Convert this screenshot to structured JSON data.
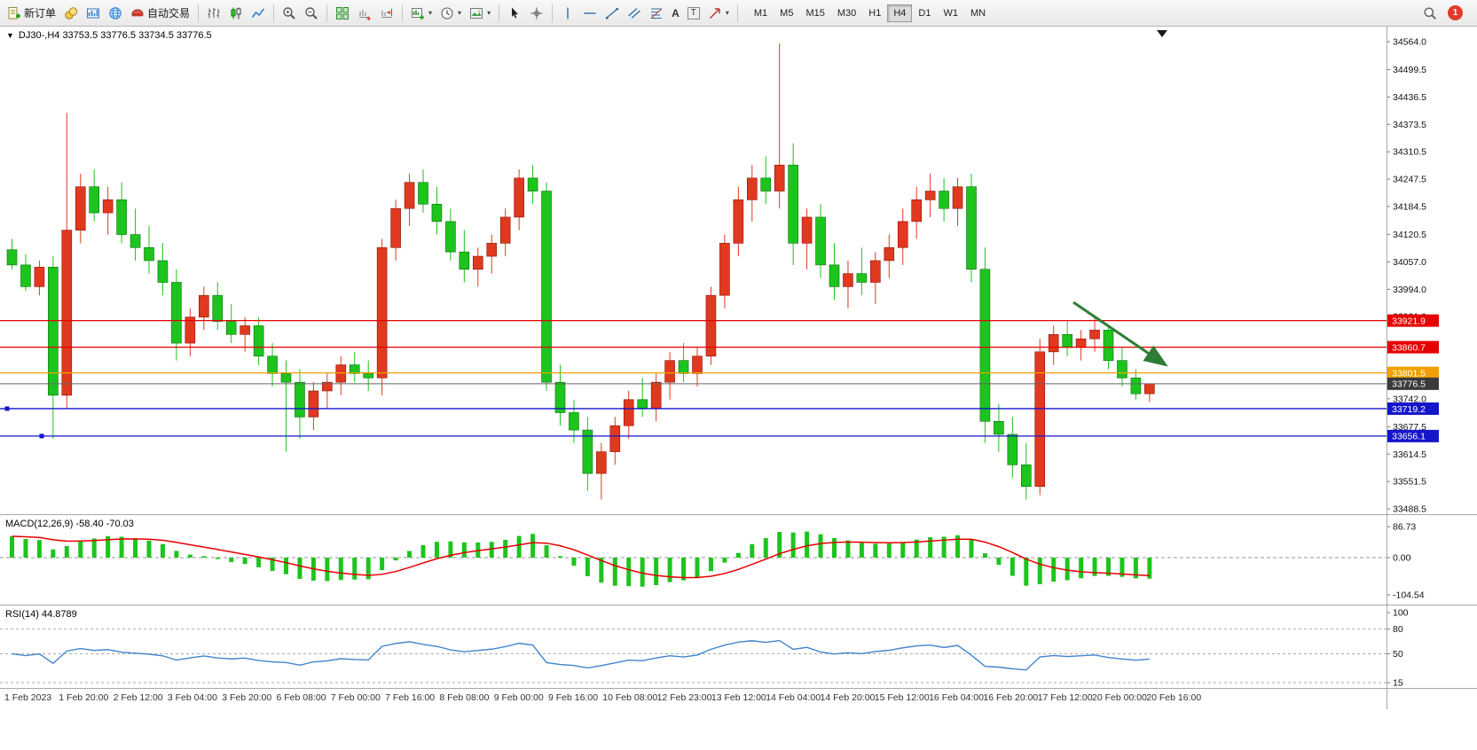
{
  "toolbar": {
    "new_order_label": "新订单",
    "auto_trading_label": "自动交易",
    "timeframes": [
      "M1",
      "M5",
      "M15",
      "M30",
      "H1",
      "H4",
      "D1",
      "W1",
      "MN"
    ],
    "active_timeframe": "H4",
    "notification_badge": "1",
    "icon_glyphs": {
      "collapse_triangle": "▼",
      "caret": "▾",
      "text_tool": "A",
      "label_tool": "T"
    },
    "icons": [
      "new-order",
      "market-watch",
      "toolbox",
      "mql5-community",
      "algo-trading",
      "bar-chart",
      "candlestick-chart",
      "line-chart",
      "zoom-in",
      "zoom-out",
      "tile-windows",
      "auto-scroll",
      "chart-shift",
      "new-chart",
      "periods-clock",
      "templates-image",
      "cursor",
      "crosshair",
      "vertical-line",
      "horizontal-line",
      "trend-line",
      "equidistant-channel",
      "fibonacci",
      "text",
      "text-label",
      "arrows",
      "search",
      "notifications"
    ]
  },
  "chart_data": [
    {
      "name": "main-price-chart",
      "type": "candlestick",
      "symbol": "DJ30-",
      "period": "H4",
      "title_text": "DJ30-,H4 33753.5 33776.5 33734.5 33776.5",
      "price_range": {
        "min": 33488.5,
        "max": 34564.0
      },
      "up_color": "#e0391f",
      "down_color": "#1dc41d",
      "candles": [
        [
          34085,
          34110,
          34040,
          34050
        ],
        [
          34050,
          34075,
          33990,
          34000
        ],
        [
          34000,
          34060,
          33980,
          34045
        ],
        [
          34045,
          34070,
          33650,
          33750
        ],
        [
          33750,
          34400,
          33720,
          34130
        ],
        [
          34130,
          34260,
          34100,
          34230
        ],
        [
          34230,
          34270,
          34150,
          34170
        ],
        [
          34170,
          34230,
          34120,
          34200
        ],
        [
          34200,
          34240,
          34100,
          34120
        ],
        [
          34120,
          34180,
          34060,
          34090
        ],
        [
          34090,
          34140,
          34030,
          34060
        ],
        [
          34060,
          34100,
          33980,
          34010
        ],
        [
          34010,
          34040,
          33830,
          33870
        ],
        [
          33870,
          33950,
          33840,
          33930
        ],
        [
          33930,
          34000,
          33900,
          33980
        ],
        [
          33980,
          34010,
          33900,
          33920
        ],
        [
          33920,
          33960,
          33870,
          33890
        ],
        [
          33890,
          33930,
          33850,
          33910
        ],
        [
          33910,
          33930,
          33820,
          33840
        ],
        [
          33840,
          33870,
          33770,
          33800
        ],
        [
          33800,
          33830,
          33620,
          33780
        ],
        [
          33780,
          33810,
          33650,
          33700
        ],
        [
          33700,
          33780,
          33670,
          33760
        ],
        [
          33760,
          33800,
          33720,
          33780
        ],
        [
          33780,
          33840,
          33750,
          33820
        ],
        [
          33820,
          33850,
          33780,
          33800
        ],
        [
          33800,
          33830,
          33760,
          33790
        ],
        [
          33790,
          34110,
          33750,
          34090
        ],
        [
          34090,
          34200,
          34060,
          34180
        ],
        [
          34180,
          34260,
          34140,
          34240
        ],
        [
          34240,
          34270,
          34170,
          34190
        ],
        [
          34190,
          34230,
          34120,
          34150
        ],
        [
          34150,
          34180,
          34060,
          34080
        ],
        [
          34080,
          34130,
          34010,
          34040
        ],
        [
          34040,
          34090,
          34000,
          34070
        ],
        [
          34070,
          34120,
          34030,
          34100
        ],
        [
          34100,
          34180,
          34070,
          34160
        ],
        [
          34160,
          34270,
          34130,
          34250
        ],
        [
          34250,
          34280,
          34190,
          34220
        ],
        [
          34220,
          34240,
          33760,
          33780
        ],
        [
          33780,
          33820,
          33680,
          33710
        ],
        [
          33710,
          33740,
          33640,
          33670
        ],
        [
          33670,
          33700,
          33530,
          33570
        ],
        [
          33570,
          33640,
          33510,
          33620
        ],
        [
          33620,
          33700,
          33590,
          33680
        ],
        [
          33680,
          33760,
          33650,
          33740
        ],
        [
          33740,
          33790,
          33700,
          33720
        ],
        [
          33720,
          33800,
          33690,
          33780
        ],
        [
          33780,
          33850,
          33740,
          33830
        ],
        [
          33830,
          33870,
          33780,
          33800
        ],
        [
          33800,
          33860,
          33770,
          33840
        ],
        [
          33840,
          34000,
          33820,
          33980
        ],
        [
          33980,
          34120,
          33950,
          34100
        ],
        [
          34100,
          34230,
          34070,
          34200
        ],
        [
          34200,
          34280,
          34150,
          34250
        ],
        [
          34250,
          34300,
          34190,
          34220
        ],
        [
          34220,
          34560,
          34180,
          34280
        ],
        [
          34280,
          34330,
          34050,
          34100
        ],
        [
          34100,
          34180,
          34040,
          34160
        ],
        [
          34160,
          34190,
          34020,
          34050
        ],
        [
          34050,
          34100,
          33970,
          34000
        ],
        [
          34000,
          34060,
          33950,
          34030
        ],
        [
          34030,
          34090,
          33980,
          34010
        ],
        [
          34010,
          34080,
          33960,
          34060
        ],
        [
          34060,
          34120,
          34020,
          34090
        ],
        [
          34090,
          34180,
          34050,
          34150
        ],
        [
          34150,
          34230,
          34110,
          34200
        ],
        [
          34200,
          34260,
          34160,
          34220
        ],
        [
          34220,
          34250,
          34150,
          34180
        ],
        [
          34180,
          34250,
          34140,
          34230
        ],
        [
          34230,
          34260,
          34010,
          34040
        ],
        [
          34040,
          34090,
          33640,
          33690
        ],
        [
          33690,
          33730,
          33620,
          33660
        ],
        [
          33660,
          33700,
          33560,
          33590
        ],
        [
          33590,
          33640,
          33510,
          33540
        ],
        [
          33540,
          33880,
          33520,
          33850
        ],
        [
          33850,
          33910,
          33820,
          33890
        ],
        [
          33890,
          33920,
          33840,
          33860
        ],
        [
          33860,
          33900,
          33830,
          33880
        ],
        [
          33880,
          33930,
          33850,
          33900
        ],
        [
          33900,
          33910,
          33810,
          33830
        ],
        [
          33830,
          33860,
          33770,
          33790
        ],
        [
          33790,
          33810,
          33740,
          33753.5
        ],
        [
          33753.5,
          33776.5,
          33734.5,
          33776.5
        ]
      ],
      "price_axis_labels": [
        "34564.0",
        "34499.5",
        "34436.5",
        "34373.5",
        "34310.5",
        "34247.5",
        "34184.5",
        "34120.5",
        "34057.0",
        "33994.0",
        "33931.0",
        "33742.0",
        "33677.5",
        "33614.5",
        "33551.5",
        "33488.5"
      ],
      "horizontal_lines": [
        {
          "value": 33921.9,
          "label": "33921.9",
          "color": "#e60000"
        },
        {
          "value": 33860.7,
          "label": "33860.7",
          "color": "#e60000"
        },
        {
          "value": 33801.5,
          "label": "33801.5",
          "color": "#f0a000"
        },
        {
          "value": 33719.2,
          "label": "33719.2",
          "color": "#1515cc"
        },
        {
          "value": 33656.1,
          "label": "33656.1",
          "color": "#1515cc"
        }
      ],
      "current_price": {
        "value": 33776.5,
        "label": "33776.5",
        "badge_color": "#3a3a3a",
        "line_color": "#666666"
      },
      "annotation_arrow": {
        "color": "#2e7d32"
      },
      "time_axis_labels": [
        "1 Feb 2023",
        "1 Feb 20:00",
        "2 Feb 12:00",
        "3 Feb 04:00",
        "3 Feb 20:00",
        "6 Feb 08:00",
        "7 Feb 00:00",
        "7 Feb 16:00",
        "8 Feb 08:00",
        "9 Feb 00:00",
        "9 Feb 16:00",
        "10 Feb 08:00",
        "12 Feb 23:00",
        "13 Feb 12:00",
        "14 Feb 04:00",
        "14 Feb 20:00",
        "15 Feb 12:00",
        "16 Feb 04:00",
        "16 Feb 20:00",
        "17 Feb 12:00",
        "20 Feb 00:00",
        "20 Feb 16:00"
      ]
    },
    {
      "name": "macd",
      "type": "macd-indicator",
      "label": "MACD(12,26,9) -58.40 -70.03",
      "params": [
        12,
        26,
        9
      ],
      "current_values": [
        "-58.40",
        "-70.03"
      ],
      "axis_labels": [
        "86.73",
        "0.00",
        "-104.54"
      ],
      "histogram_color": "#1dc41d",
      "signal_color": "#e60000"
    },
    {
      "name": "rsi",
      "type": "rsi-indicator",
      "label": "RSI(14) 44.8789",
      "period": 14,
      "current_value": "44.8789",
      "axis_labels": [
        "100",
        "80",
        "50",
        "15"
      ],
      "levels": [
        80,
        50,
        15
      ],
      "line_color": "#4285cc"
    }
  ]
}
